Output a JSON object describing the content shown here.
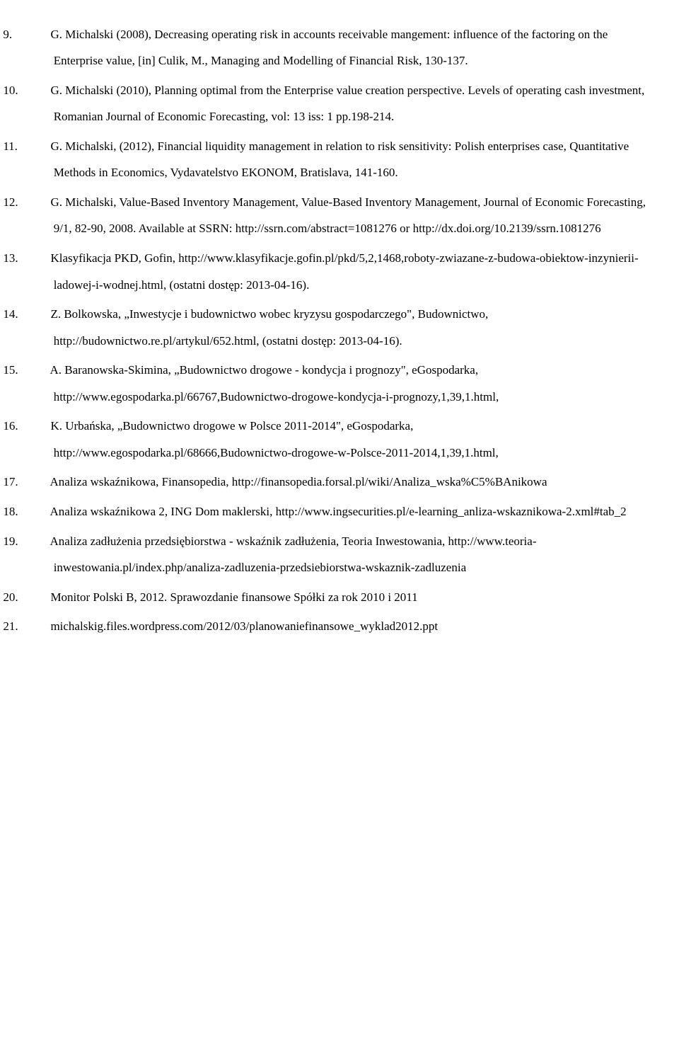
{
  "references": [
    {
      "num": "9.",
      "text": "G. Michalski (2008), Decreasing operating risk in accounts receivable mangement: influence of the factoring on the Enterprise value, [in] Culik, M., Managing and Modelling of Financial Risk, 130-137."
    },
    {
      "num": "10.",
      "text": "G. Michalski (2010), Planning optimal from the Enterprise value creation perspective. Levels of operating cash investment, Romanian Journal of Economic Forecasting, vol: 13 iss: 1 pp.198-214."
    },
    {
      "num": "11.",
      "text": "G. Michalski, (2012), Financial liquidity management in relation to risk sensitivity: Polish enterprises case, Quantitative Methods in Economics, Vydavatelstvo EKONOM, Bratislava, 141-160."
    },
    {
      "num": "12.",
      "text": "G. Michalski, Value-Based Inventory Management, Value-Based Inventory Management, Journal of Economic Forecasting, 9/1, 82-90, 2008. Available at SSRN: http://ssrn.com/abstract=1081276 or http://dx.doi.org/10.2139/ssrn.1081276"
    },
    {
      "num": "13.",
      "text": "Klasyfikacja PKD, Gofin, http://www.klasyfikacje.gofin.pl/pkd/5,2,1468,roboty-zwiazane-z-budowa-obiektow-inzynierii-ladowej-i-wodnej.html, (ostatni dostęp: 2013-04-16)."
    },
    {
      "num": "14.",
      "text": "Z. Bolkowska, „Inwestycje i budownictwo wobec kryzysu gospodarczego\", Budownictwo, http://budownictwo.re.pl/artykul/652.html, (ostatni dostęp: 2013-04-16)."
    },
    {
      "num": "15.",
      "text": "A. Baranowska-Skimina, „Budownictwo drogowe - kondycja i prognozy\", eGospodarka, http://www.egospodarka.pl/66767,Budownictwo-drogowe-kondycja-i-prognozy,1,39,1.html,"
    },
    {
      "num": "16.",
      "text": "K. Urbańska, „Budownictwo drogowe w Polsce 2011-2014\", eGospodarka, http://www.egospodarka.pl/68666,Budownictwo-drogowe-w-Polsce-2011-2014,1,39,1.html,"
    },
    {
      "num": "17.",
      "text": "Analiza wskaźnikowa, Finansopedia, http://finansopedia.forsal.pl/wiki/Analiza_wska%C5%BAnikowa"
    },
    {
      "num": "18.",
      "text": "Analiza wskaźnikowa 2, ING Dom maklerski, http://www.ingsecurities.pl/e-learning_anliza-wskaznikowa-2.xml#tab_2"
    },
    {
      "num": "19.",
      "text": "Analiza zadłużenia przedsiębiorstwa - wskaźnik zadłużenia, Teoria Inwestowania, http://www.teoria-inwestowania.pl/index.php/analiza-zadluzenia-przedsiebiorstwa-wskaznik-zadluzenia"
    },
    {
      "num": "20.",
      "text": "Monitor Polski B, 2012. Sprawozdanie finansowe Spółki za rok 2010 i 2011"
    },
    {
      "num": "21.",
      "text": "michalskig.files.wordpress.com/2012/03/planowaniefinansowe_wyklad2012.ppt"
    }
  ]
}
